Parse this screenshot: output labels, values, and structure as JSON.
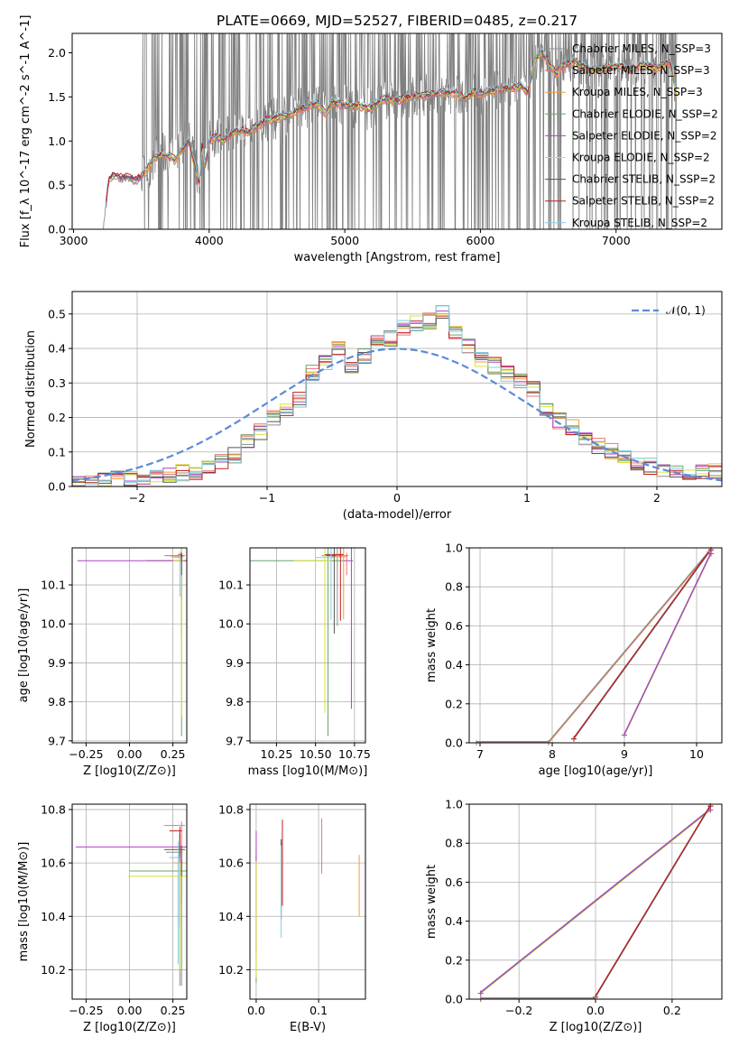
{
  "figure": {
    "title": "PLATE=0669, MJD=52527, FIBERID=0485, z=0.217"
  },
  "colors": {
    "grid": "#b0b0b0",
    "axes": "#000000",
    "data_spectrum": "#808080",
    "normal_curve": "#5b8bd9"
  },
  "models": [
    {
      "label": "Chabrier MILES, N_SSP=3",
      "color": "#8e8e8e"
    },
    {
      "label": "Salpeter MILES, N_SSP=3",
      "color": "#e8747c"
    },
    {
      "label": "Kroupa MILES, N_SSP=3",
      "color": "#f39c3c"
    },
    {
      "label": "Chabrier ELODIE, N_SSP=2",
      "color": "#6aa56a"
    },
    {
      "label": "Salpeter ELODIE, N_SSP=2",
      "color": "#b040c8"
    },
    {
      "label": "Kroupa ELODIE, N_SSP=2",
      "color": "#d8e23a"
    },
    {
      "label": "Chabrier STELIB, N_SSP=2",
      "color": "#555555"
    },
    {
      "label": "Salpeter STELIB, N_SSP=2",
      "color": "#c21f1f"
    },
    {
      "label": "Kroupa STELIB, N_SSP=2",
      "color": "#7fd0e0"
    }
  ],
  "chart_data": [
    {
      "id": "spectrum",
      "type": "line",
      "xlabel": "wavelength [Angstrom, rest frame]",
      "ylabel": "Flux [f_λ 10^-17 erg cm^-2 s^-1 A^-1]",
      "xlim": [
        2990,
        7780
      ],
      "ylim": [
        0,
        2.22
      ],
      "xticks": [
        3000,
        4000,
        5000,
        6000,
        7000
      ],
      "yticks": [
        0.0,
        0.5,
        1.0,
        1.5,
        2.0
      ],
      "legend_position": "top-right",
      "model_continuum": {
        "x": [
          3220,
          3260,
          3300,
          3350,
          3400,
          3450,
          3500,
          3550,
          3600,
          3650,
          3700,
          3750,
          3800,
          3850,
          3900,
          3930,
          3950,
          3970,
          4000,
          4050,
          4100,
          4200,
          4300,
          4400,
          4500,
          4600,
          4700,
          4800,
          4862,
          4900,
          5000,
          5100,
          5175,
          5250,
          5300,
          5400,
          5500,
          5600,
          5700,
          5800,
          5890,
          5950,
          6000,
          6100,
          6200,
          6300,
          6350,
          6400,
          6450,
          6500,
          6563,
          6600,
          6700,
          6800,
          6900,
          7000,
          7100,
          7200,
          7300,
          7400,
          7450
        ],
        "y": [
          0.02,
          0.58,
          0.62,
          0.58,
          0.6,
          0.55,
          0.6,
          0.7,
          0.82,
          0.85,
          0.83,
          0.78,
          0.9,
          1.0,
          0.68,
          0.5,
          0.98,
          0.7,
          1.0,
          1.05,
          1.0,
          1.12,
          1.1,
          1.22,
          1.26,
          1.3,
          1.38,
          1.42,
          1.3,
          1.44,
          1.4,
          1.4,
          1.36,
          1.44,
          1.48,
          1.46,
          1.5,
          1.52,
          1.55,
          1.55,
          1.48,
          1.55,
          1.54,
          1.57,
          1.6,
          1.62,
          1.55,
          1.92,
          2.0,
          1.9,
          1.75,
          1.85,
          1.9,
          1.8,
          1.82,
          1.85,
          1.8,
          1.86,
          1.82,
          1.9,
          1.5
        ]
      },
      "data_noise_range": [
        3500,
        7450
      ]
    },
    {
      "id": "residuals",
      "type": "line",
      "xlabel": "(data-model)/error",
      "ylabel": "Normed distribution",
      "xlim": [
        -2.5,
        2.5
      ],
      "ylim": [
        0,
        0.565
      ],
      "xticks": [
        -2,
        -1,
        0,
        1,
        2
      ],
      "yticks": [
        0.0,
        0.1,
        0.2,
        0.3,
        0.4,
        0.5
      ],
      "legend_position": "top-right",
      "normal_label": "𝒩(0, 1)",
      "hist_bins_edges": [
        -2.5,
        -2.4,
        -2.3,
        -2.2,
        -2.1,
        -2.0,
        -1.9,
        -1.8,
        -1.7,
        -1.6,
        -1.5,
        -1.4,
        -1.3,
        -1.2,
        -1.1,
        -1.0,
        -0.9,
        -0.8,
        -0.7,
        -0.6,
        -0.5,
        -0.4,
        -0.3,
        -0.2,
        -0.1,
        0.0,
        0.1,
        0.2,
        0.3,
        0.4,
        0.5,
        0.6,
        0.7,
        0.8,
        0.9,
        1.0,
        1.1,
        1.2,
        1.3,
        1.4,
        1.5,
        1.6,
        1.7,
        1.8,
        1.9,
        2.0,
        2.1,
        2.2,
        2.3,
        2.4,
        2.5
      ],
      "hist_base": [
        0.005,
        0.01,
        0.015,
        0.02,
        0.02,
        0.025,
        0.03,
        0.035,
        0.04,
        0.04,
        0.06,
        0.07,
        0.09,
        0.13,
        0.16,
        0.2,
        0.22,
        0.25,
        0.33,
        0.36,
        0.4,
        0.34,
        0.38,
        0.42,
        0.43,
        0.46,
        0.47,
        0.48,
        0.5,
        0.44,
        0.41,
        0.37,
        0.35,
        0.33,
        0.31,
        0.28,
        0.22,
        0.19,
        0.17,
        0.14,
        0.12,
        0.1,
        0.08,
        0.07,
        0.06,
        0.05,
        0.04,
        0.04,
        0.04,
        0.045
      ]
    },
    {
      "id": "age_vs_Z",
      "type": "line",
      "xlabel": "Z [log10(Z/Z⊙)]",
      "ylabel": "age [log10(age/yr)]",
      "xlim": [
        -0.33,
        0.33
      ],
      "ylim": [
        9.695,
        10.195
      ],
      "xticks": [
        -0.25,
        0.0,
        0.25
      ],
      "yticks": [
        9.7,
        9.8,
        9.9,
        10.0,
        10.1
      ]
    },
    {
      "id": "age_vs_mass",
      "type": "line",
      "xlabel": "mass [log10(M/M⊙)]",
      "ylabel": "",
      "xlim": [
        10.08,
        10.82
      ],
      "ylim": [
        9.695,
        10.195
      ],
      "xticks": [
        10.25,
        10.5,
        10.75
      ],
      "yticks": [
        9.7,
        9.8,
        9.9,
        10.0,
        10.1
      ]
    },
    {
      "id": "weight_vs_age",
      "type": "line",
      "xlabel": "age [log10(age/yr)]",
      "ylabel": "mass weight",
      "xlim": [
        6.85,
        10.35
      ],
      "ylim": [
        0,
        1
      ],
      "xticks": [
        7,
        8,
        9,
        10
      ],
      "yticks": [
        0.0,
        0.2,
        0.4,
        0.6,
        0.8,
        1.0
      ],
      "series": [
        {
          "x": [
            6.95,
            7.95,
            10.18
          ],
          "y": [
            0.0,
            0.0,
            0.98
          ],
          "colors": [
            "#f39c3c",
            "#e8747c",
            "#8e8e8e"
          ]
        },
        {
          "x": [
            8.3,
            10.2
          ],
          "y": [
            0.02,
            0.99
          ],
          "colors": [
            "#7fd0e0",
            "#555555",
            "#c21f1f"
          ]
        },
        {
          "x": [
            9.0,
            10.2
          ],
          "y": [
            0.04,
            0.97
          ],
          "colors": [
            "#d8e23a",
            "#6aa56a",
            "#b040c8"
          ]
        }
      ]
    },
    {
      "id": "mass_vs_Z",
      "type": "line",
      "xlabel": "Z [log10(Z/Z⊙)]",
      "ylabel": "mass [log10(M/M⊙)]",
      "xlim": [
        -0.33,
        0.33
      ],
      "ylim": [
        10.09,
        10.82
      ],
      "xticks": [
        -0.25,
        0.0,
        0.25
      ],
      "yticks": [
        10.2,
        10.4,
        10.6,
        10.8
      ]
    },
    {
      "id": "mass_vs_ebv",
      "type": "line",
      "xlabel": "E(B-V)",
      "ylabel": "",
      "xlim": [
        -0.01,
        0.175
      ],
      "ylim": [
        10.09,
        10.82
      ],
      "xticks": [
        0.0,
        0.1
      ],
      "yticks": [
        10.2,
        10.4,
        10.6,
        10.8
      ]
    },
    {
      "id": "weight_vs_Z",
      "type": "line",
      "xlabel": "Z [log10(Z/Z⊙)]",
      "ylabel": "mass weight",
      "xlim": [
        -0.33,
        0.33
      ],
      "ylim": [
        0,
        1
      ],
      "xticks": [
        -0.2,
        0.0,
        0.2
      ],
      "yticks": [
        0.0,
        0.2,
        0.4,
        0.6,
        0.8,
        1.0
      ],
      "series": [
        {
          "x": [
            -0.3,
            0.3
          ],
          "y": [
            0.03,
            0.97
          ],
          "colors": [
            "#d8e23a",
            "#6aa56a",
            "#b040c8"
          ]
        },
        {
          "x": [
            0.0,
            0.3
          ],
          "y": [
            0.01,
            0.99
          ],
          "colors": [
            "#7fd0e0",
            "#555555",
            "#c21f1f"
          ]
        },
        {
          "x": [
            -0.3,
            0.0
          ],
          "y": [
            0.0,
            0.0
          ],
          "colors": [
            "#f39c3c",
            "#e8747c",
            "#8e8e8e"
          ]
        }
      ]
    }
  ]
}
